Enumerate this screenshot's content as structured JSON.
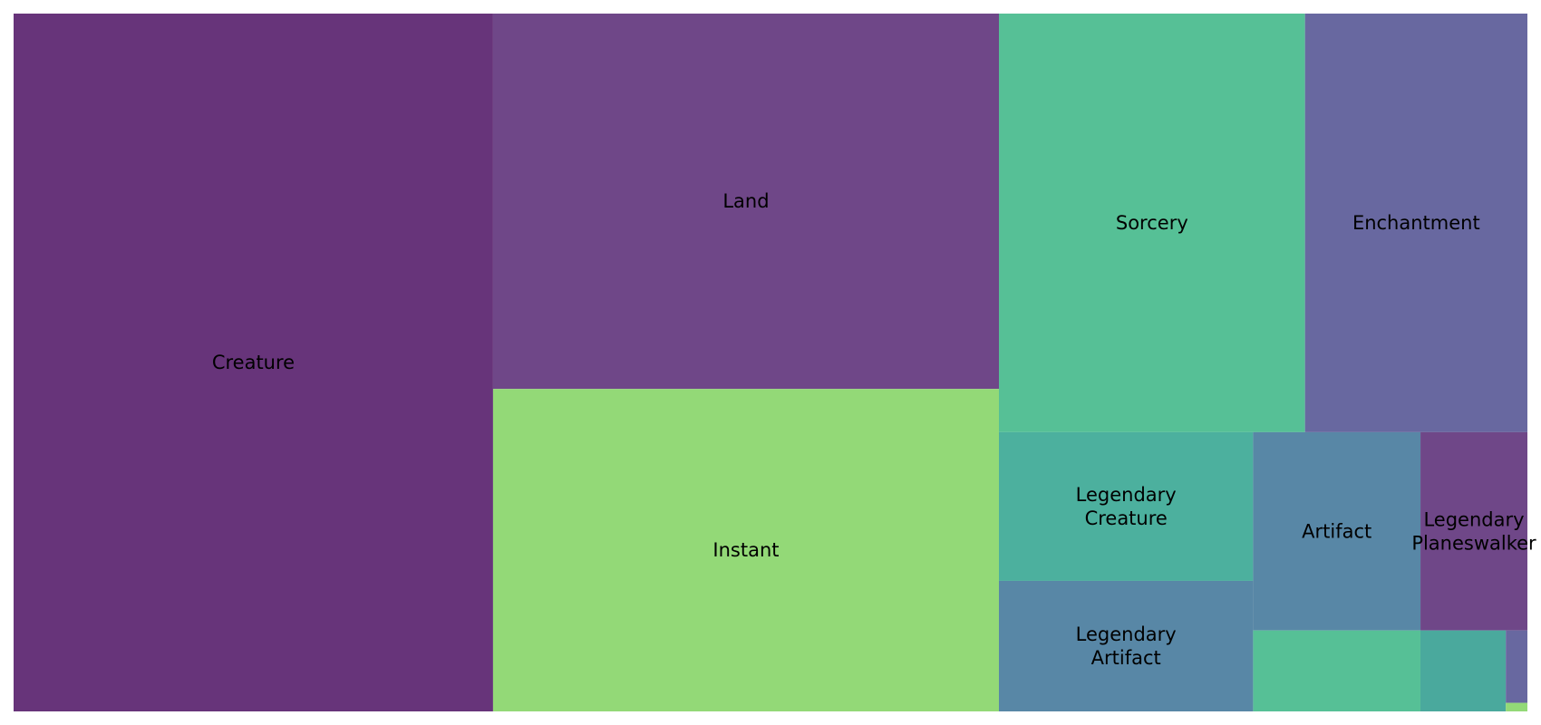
{
  "chart_data": {
    "type": "treemap",
    "title": "",
    "value_unit": "relative area",
    "items": [
      {
        "label": "Creature",
        "value": 36.3,
        "color": "#67347a"
      },
      {
        "label": "Land",
        "value": 20.6,
        "color": "#6f4788"
      },
      {
        "label": "Instant",
        "value": 17.7,
        "color": "#93d977"
      },
      {
        "label": "Sorcery",
        "value": 13.9,
        "color": "#56c096"
      },
      {
        "label": "Enchantment",
        "value": 10.1,
        "color": "#6868a0"
      },
      {
        "label": "Legendary Creature",
        "value": 4.1,
        "color": "#4cb09e"
      },
      {
        "label": "Legendary Artifact",
        "value": 3.6,
        "color": "#5887a6"
      },
      {
        "label": "Artifact",
        "value": 3.6,
        "color": "#5887a6"
      },
      {
        "label": "Legendary Planeswalker",
        "value": 2.3,
        "color": "#6f4788"
      },
      {
        "label": "",
        "value": 1.47,
        "color": "#56c096"
      },
      {
        "label": "",
        "value": 0.75,
        "color": "#4aa99d"
      },
      {
        "label": "",
        "value": 0.17,
        "color": "#6868a0"
      },
      {
        "label": "",
        "value": 0.02,
        "color": "#93d977"
      }
    ]
  }
}
